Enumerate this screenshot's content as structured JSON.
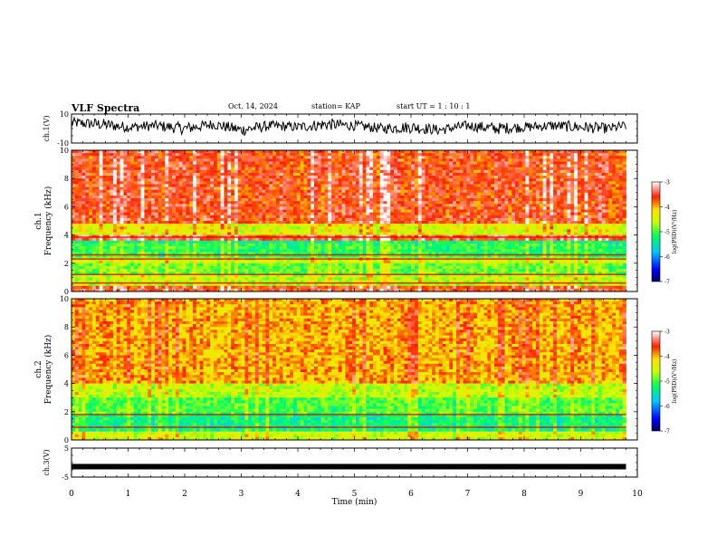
{
  "header": {
    "title": "VLF Spectra",
    "date": "Oct. 14, 2024",
    "station": "station= KAP",
    "start_ut": "start  UT =   1 : 10 : 1"
  },
  "chart_data": [
    {
      "type": "line",
      "panel": "ch1-waveform",
      "ylabel": "ch.1(V)",
      "ylim": [
        -10,
        10
      ],
      "yticks": [
        "10",
        "-10"
      ],
      "x": [
        0.0,
        0.5,
        1.0,
        1.5,
        2.0,
        2.5,
        3.0,
        3.5,
        4.0,
        4.5,
        5.0,
        5.5,
        6.0,
        6.5,
        7.0,
        7.5,
        8.0,
        8.5,
        9.0,
        9.5,
        9.8
      ],
      "values": [
        4,
        3,
        1,
        2,
        0,
        3,
        -1,
        2,
        1,
        3,
        2,
        0,
        1,
        -1,
        2,
        0,
        1,
        2,
        1,
        0,
        2
      ],
      "envelope": [
        5,
        6,
        5,
        5,
        6,
        5,
        6,
        5,
        5,
        6,
        5,
        5,
        6,
        5,
        5,
        6,
        5,
        5,
        6,
        5,
        5
      ]
    },
    {
      "type": "heatmap",
      "panel": "ch1-spectrogram",
      "ylabel": "ch.1\nFrequency (kHz)",
      "ylim": [
        0,
        10
      ],
      "yticks": [
        "0",
        "2",
        "4",
        "6",
        "8",
        "10"
      ],
      "xlim": [
        0,
        9.8
      ],
      "freq_bands": [
        {
          "from": 0.0,
          "to": 0.4,
          "level": -3.6
        },
        {
          "from": 0.4,
          "to": 1.2,
          "level": -4.6
        },
        {
          "from": 1.2,
          "to": 2.0,
          "level": -4.9
        },
        {
          "from": 2.0,
          "to": 2.4,
          "level": -4.5
        },
        {
          "from": 2.4,
          "to": 3.4,
          "level": -5.1
        },
        {
          "from": 3.4,
          "to": 3.7,
          "level": -5.3
        },
        {
          "from": 3.7,
          "to": 4.0,
          "level": -3.5
        },
        {
          "from": 4.0,
          "to": 4.9,
          "level": -4.4
        },
        {
          "from": 4.9,
          "to": 10.0,
          "level": -3.6
        }
      ],
      "lines_khz": [
        3.85,
        2.6,
        2.3,
        1.2,
        0.6
      ],
      "colorbar": {
        "label": "log(PSD)(V²/Hz)",
        "min": -7,
        "max": -3,
        "ticks": [
          "-3",
          "-4",
          "-5",
          "-6",
          "-7"
        ]
      }
    },
    {
      "type": "heatmap",
      "panel": "ch2-spectrogram",
      "ylabel": "ch.2\nFrequency (kHz)",
      "ylim": [
        0,
        10
      ],
      "yticks": [
        "0",
        "2",
        "4",
        "6",
        "8",
        "10"
      ],
      "xlim": [
        0,
        9.8
      ],
      "freq_bands": [
        {
          "from": 0.0,
          "to": 0.6,
          "level": -4.5
        },
        {
          "from": 0.6,
          "to": 1.8,
          "level": -5.3
        },
        {
          "from": 1.8,
          "to": 3.0,
          "level": -5.0
        },
        {
          "from": 3.0,
          "to": 4.0,
          "level": -4.6
        },
        {
          "from": 4.0,
          "to": 10.0,
          "level": -4.0
        }
      ],
      "lines_khz": [
        1.8,
        0.9
      ],
      "colorbar": {
        "label": "log(PSD)(V²/Hz)",
        "min": -7,
        "max": -3,
        "ticks": [
          "-3",
          "-4",
          "-5",
          "-6",
          "-7"
        ]
      }
    },
    {
      "type": "line",
      "panel": "ch3-waveform",
      "ylabel": "ch.3(V)",
      "ylim": [
        -5,
        5
      ],
      "yticks": [
        "5",
        "-5"
      ],
      "xlabel": "Time (min)",
      "xlim": [
        0,
        10
      ],
      "xticks": [
        "0",
        "1",
        "2",
        "3",
        "4",
        "5",
        "6",
        "7",
        "8",
        "9",
        "10"
      ],
      "x": [
        0,
        9.8
      ],
      "values": [
        -1.4,
        -1.4
      ]
    }
  ]
}
